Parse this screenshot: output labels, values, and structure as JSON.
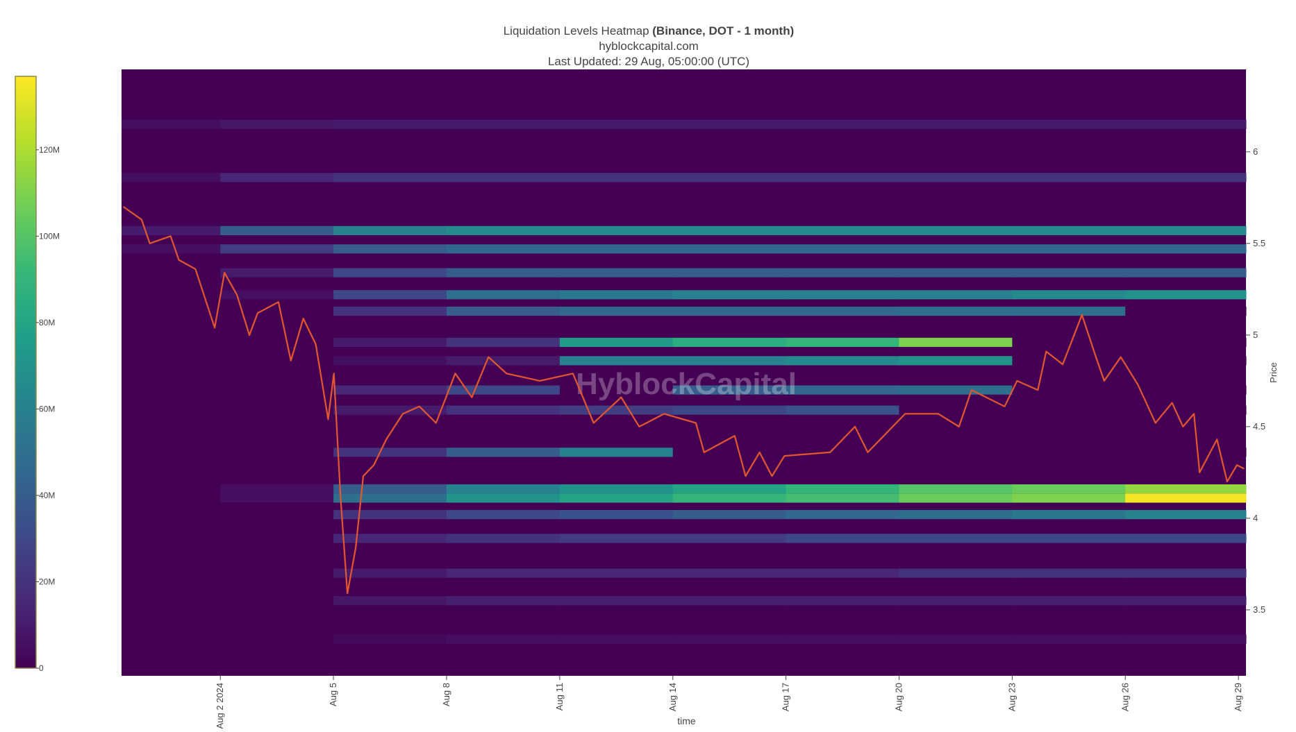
{
  "chart_data": {
    "type": "heatmap",
    "title": "Liquidation Levels Heatmap",
    "title_bold": "(Binance, DOT - 1 month)",
    "subtitle": "hyblockcapital.com",
    "updated": "Last Updated: 29 Aug, 05:00:00 (UTC)",
    "watermark": "HyblockCapital",
    "x_label": "time",
    "y_label": "Price",
    "colorscale": "Viridis",
    "xlim": [
      -0.62,
      29.2
    ],
    "xticks": [
      {
        "value": 2,
        "label": "Aug 2 2024"
      },
      {
        "value": 5,
        "label": "Aug 5"
      },
      {
        "value": 8,
        "label": "Aug 8"
      },
      {
        "value": 11,
        "label": "Aug 11"
      },
      {
        "value": 14,
        "label": "Aug 14"
      },
      {
        "value": 17,
        "label": "Aug 17"
      },
      {
        "value": 20,
        "label": "Aug 20"
      },
      {
        "value": 23,
        "label": "Aug 23"
      },
      {
        "value": 26,
        "label": "Aug 26"
      },
      {
        "value": 29,
        "label": "Aug 29"
      }
    ],
    "ylim": [
      3.14,
      6.45
    ],
    "yticks": [
      3.5,
      4,
      4.5,
      5,
      5.5,
      6
    ],
    "clim": [
      0,
      137
    ],
    "cticks": [
      0,
      {
        "value": 20,
        "label": "20M"
      },
      {
        "value": 40,
        "label": "40M"
      },
      {
        "value": 60,
        "label": "60M"
      },
      {
        "value": 80,
        "label": "80M"
      },
      {
        "value": 100,
        "label": "100M"
      },
      {
        "value": 120,
        "label": "120M"
      }
    ],
    "heatmap": {
      "x_edges": [
        -0.62,
        2,
        5,
        8,
        11,
        14,
        17,
        20,
        23,
        26,
        29.2
      ],
      "bands": [
        {
          "price": 6.15,
          "values": [
            5,
            8,
            10,
            10,
            10,
            10,
            10,
            10,
            10,
            10
          ]
        },
        {
          "price": 5.86,
          "values": [
            5,
            15,
            20,
            20,
            20,
            20,
            20,
            20,
            20,
            20
          ]
        },
        {
          "price": 5.57,
          "values": [
            10,
            40,
            60,
            65,
            65,
            65,
            65,
            65,
            65,
            65
          ]
        },
        {
          "price": 5.47,
          "values": [
            5,
            25,
            40,
            45,
            45,
            45,
            45,
            45,
            45,
            45
          ]
        },
        {
          "price": 5.34,
          "values": [
            0,
            10,
            30,
            40,
            40,
            40,
            40,
            40,
            40,
            40
          ]
        },
        {
          "price": 5.22,
          "values": [
            0,
            5,
            30,
            50,
            55,
            60,
            60,
            60,
            65,
            70
          ]
        },
        {
          "price": 5.13,
          "values": [
            0,
            0,
            20,
            40,
            45,
            45,
            45,
            50,
            50,
            0
          ]
        },
        {
          "price": 4.96,
          "values": [
            0,
            0,
            10,
            20,
            75,
            85,
            90,
            110,
            0,
            0
          ]
        },
        {
          "price": 4.86,
          "values": [
            0,
            0,
            5,
            10,
            60,
            60,
            65,
            70,
            0,
            0
          ]
        },
        {
          "price": 4.7,
          "values": [
            0,
            0,
            15,
            30,
            0,
            40,
            45,
            50,
            0,
            0
          ]
        },
        {
          "price": 4.59,
          "values": [
            0,
            0,
            10,
            20,
            25,
            30,
            35,
            0,
            0,
            0
          ]
        },
        {
          "price": 4.36,
          "values": [
            0,
            0,
            20,
            40,
            60,
            0,
            0,
            0,
            0,
            0
          ]
        },
        {
          "price": 4.16,
          "values": [
            0,
            5,
            40,
            60,
            70,
            80,
            90,
            100,
            105,
            115
          ]
        },
        {
          "price": 4.11,
          "values": [
            0,
            5,
            50,
            70,
            80,
            90,
            95,
            105,
            110,
            135
          ]
        },
        {
          "price": 4.02,
          "values": [
            0,
            0,
            20,
            30,
            35,
            40,
            45,
            50,
            55,
            60
          ]
        },
        {
          "price": 3.89,
          "values": [
            0,
            0,
            15,
            20,
            25,
            25,
            30,
            30,
            30,
            30
          ]
        },
        {
          "price": 3.7,
          "values": [
            0,
            0,
            10,
            15,
            15,
            15,
            15,
            20,
            20,
            20
          ]
        },
        {
          "price": 3.55,
          "values": [
            0,
            0,
            8,
            12,
            12,
            12,
            12,
            12,
            12,
            12
          ]
        },
        {
          "price": 3.34,
          "values": [
            0,
            0,
            3,
            5,
            5,
            5,
            5,
            5,
            5,
            5
          ]
        }
      ]
    },
    "price": {
      "color": "#e4572e",
      "x": [
        -0.57,
        -0.09,
        0.13,
        0.68,
        0.9,
        1.34,
        1.85,
        2.11,
        2.44,
        2.77,
        2.99,
        3.54,
        3.87,
        4.2,
        4.53,
        4.86,
        5.01,
        5.19,
        5.37,
        5.59,
        5.79,
        6.07,
        6.4,
        6.84,
        7.28,
        7.72,
        8.23,
        8.67,
        9.11,
        9.59,
        10.47,
        11.35,
        11.9,
        12.63,
        13.11,
        13.77,
        14.61,
        14.83,
        15.64,
        15.93,
        16.3,
        16.63,
        16.96,
        18.17,
        18.83,
        19.17,
        20.16,
        21.04,
        21.59,
        21.92,
        22.8,
        23.13,
        23.68,
        23.9,
        24.34,
        24.85,
        25.22,
        25.44,
        25.88,
        26.33,
        26.8,
        27.24,
        27.53,
        27.82,
        27.97,
        28.43,
        28.7,
        28.96,
        29.15
      ],
      "y": [
        5.7,
        5.63,
        5.5,
        5.54,
        5.41,
        5.36,
        5.04,
        5.34,
        5.22,
        5.0,
        5.12,
        5.18,
        4.86,
        5.09,
        4.95,
        4.54,
        4.79,
        4.11,
        3.59,
        3.84,
        4.23,
        4.29,
        4.43,
        4.57,
        4.61,
        4.52,
        4.79,
        4.66,
        4.88,
        4.79,
        4.75,
        4.79,
        4.52,
        4.66,
        4.5,
        4.57,
        4.52,
        4.36,
        4.45,
        4.23,
        4.36,
        4.23,
        4.34,
        4.36,
        4.5,
        4.36,
        4.57,
        4.57,
        4.5,
        4.7,
        4.61,
        4.75,
        4.7,
        4.91,
        4.84,
        5.11,
        4.88,
        4.75,
        4.88,
        4.73,
        4.52,
        4.63,
        4.5,
        4.57,
        4.25,
        4.43,
        4.2,
        4.29,
        4.27
      ]
    }
  }
}
